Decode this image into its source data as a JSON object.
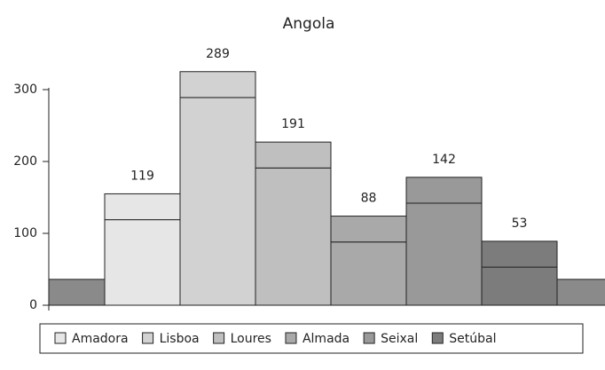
{
  "chart_data": {
    "type": "stacked-bar",
    "title": "Angola",
    "categories": [
      null,
      "Amadora",
      "Lisboa",
      "Loures",
      "Almada",
      "Seixal",
      "Setúbal",
      null
    ],
    "colors": [
      "#8a8a8a",
      "#e6e6e6",
      "#d2d2d2",
      "#bfbfbf",
      "#a9a9a9",
      "#999999",
      "#7c7c7c",
      "#8a8a8a"
    ],
    "series": [
      {
        "values": [
          null,
          119,
          289,
          191,
          88,
          142,
          53,
          null
        ]
      },
      {
        "values": [
          36,
          36,
          36,
          36,
          36,
          36,
          36,
          36
        ]
      }
    ],
    "ylim": [
      0,
      300
    ],
    "yticks": [
      0,
      100,
      200,
      300
    ],
    "legend": "bottom"
  }
}
